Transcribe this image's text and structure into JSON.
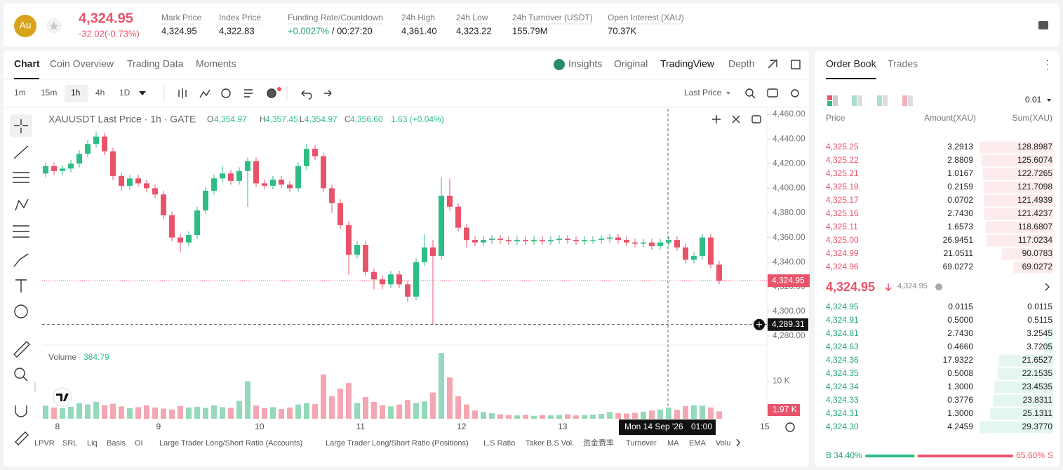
{
  "header": {
    "logo": "Au",
    "price": "4,324.95",
    "change": "-32.02(-0.73%)",
    "stats": [
      {
        "label": "Mark Price",
        "value": "4,324.95"
      },
      {
        "label": "Index Price",
        "value": "4,322.83"
      },
      {
        "label": "Funding Rate/Countdown",
        "value": "+0.0027%",
        "extra": "/ 00:27:20"
      },
      {
        "label": "24h High",
        "value": "4,361.40"
      },
      {
        "label": "24h Low",
        "value": "4,323.22"
      },
      {
        "label": "24h Turnover (USDT)",
        "value": "155.79M"
      },
      {
        "label": "Open Interest (XAU)",
        "value": "70.37K"
      }
    ]
  },
  "chart_tabs": [
    "Chart",
    "Coin Overview",
    "Trading Data",
    "Moments"
  ],
  "view_tabs": [
    "Insights",
    "Original",
    "TradingView",
    "Depth"
  ],
  "intervals": [
    "1m",
    "15m",
    "1h",
    "4h",
    "1D"
  ],
  "price_type": "Last Price",
  "indicators": [
    "LPVR",
    "SRL",
    "Liq",
    "Basis",
    "OI",
    "Large Trader Long/Short Ratio (Accounts)",
    "Large Trader Long/Short Ratio (Positions)",
    "L.S Ratio",
    "Taker B.S Vol.",
    "资金费率",
    "Turnover",
    "MA",
    "EMA",
    "Volu"
  ],
  "chart_data": {
    "type": "candlestick",
    "title": "XAUUSDT Last Price · 1h · GATE",
    "legend": [
      {
        "key": "O",
        "value": "4,354.97"
      },
      {
        "key": "H",
        "value": "4,357.45"
      },
      {
        "key": "L",
        "value": "4,354.97"
      },
      {
        "key": "C",
        "value": "4,356.60"
      }
    ],
    "legend_change": "1.63 (+0.04%)",
    "up_color": "#2ebd85",
    "down_color": "#e8536a",
    "open": [
      4412,
      4418,
      4414,
      4416,
      4420,
      4428,
      4436,
      4442,
      4430,
      4410,
      4402,
      4408,
      4404,
      4400,
      4395,
      4378,
      4360,
      4356,
      4362,
      4382,
      4398,
      4408,
      4412,
      4406,
      4414,
      4422,
      4404,
      4402,
      4407,
      4403,
      4400,
      4418,
      4432,
      4426,
      4400,
      4388,
      4370,
      4346,
      4354,
      4332,
      4326,
      4322,
      4330,
      4322,
      4312,
      4340,
      4352,
      4345,
      4394,
      4385,
      4368,
      4358,
      4356,
      4358,
      4359,
      4358,
      4357,
      4358,
      4357,
      4358,
      4357,
      4358,
      4359,
      4358,
      4357,
      4358,
      4358,
      4359,
      4360,
      4358,
      4356,
      4355,
      4356,
      4353,
      4356,
      4358,
      4352,
      4342,
      4345,
      4360,
      4338
    ],
    "high": [
      4421,
      4421,
      4419,
      4423,
      4431,
      4439,
      4446,
      4445,
      4433,
      4413,
      4411,
      4411,
      4407,
      4403,
      4398,
      4381,
      4363,
      4365,
      4385,
      4401,
      4411,
      4418,
      4415,
      4417,
      4425,
      4425,
      4407,
      4410,
      4410,
      4406,
      4421,
      4436,
      4435,
      4429,
      4403,
      4391,
      4373,
      4357,
      4357,
      4335,
      4329,
      4333,
      4333,
      4325,
      4343,
      4363,
      4358,
      4409,
      4408,
      4388,
      4371,
      4361,
      4361,
      4362,
      4362,
      4361,
      4361,
      4361,
      4361,
      4361,
      4361,
      4362,
      4362,
      4361,
      4361,
      4361,
      4362,
      4363,
      4363,
      4361,
      4359,
      4359,
      4359,
      4359,
      4361,
      4361,
      4355,
      4348,
      4363,
      4363,
      4341
    ],
    "low": [
      4409,
      4411,
      4411,
      4413,
      4417,
      4425,
      4433,
      4427,
      4407,
      4398,
      4399,
      4401,
      4397,
      4392,
      4375,
      4357,
      4348,
      4353,
      4359,
      4379,
      4395,
      4405,
      4403,
      4403,
      4385,
      4401,
      4399,
      4399,
      4400,
      4397,
      4397,
      4415,
      4423,
      4397,
      4380,
      4367,
      4330,
      4343,
      4329,
      4318,
      4318,
      4319,
      4319,
      4308,
      4309,
      4337,
      4289,
      4342,
      4382,
      4365,
      4352,
      4353,
      4353,
      4355,
      4355,
      4354,
      4354,
      4354,
      4354,
      4354,
      4354,
      4355,
      4355,
      4354,
      4354,
      4355,
      4355,
      4356,
      4355,
      4353,
      4352,
      4352,
      4350,
      4350,
      4353,
      4349,
      4339,
      4339,
      4342,
      4335,
      4322
    ],
    "close": [
      4418,
      4414,
      4416,
      4420,
      4428,
      4436,
      4442,
      4430,
      4410,
      4402,
      4408,
      4404,
      4400,
      4395,
      4378,
      4360,
      4356,
      4362,
      4382,
      4398,
      4408,
      4412,
      4406,
      4414,
      4422,
      4404,
      4402,
      4407,
      4403,
      4400,
      4418,
      4432,
      4426,
      4400,
      4388,
      4370,
      4346,
      4354,
      4332,
      4326,
      4322,
      4330,
      4322,
      4312,
      4340,
      4352,
      4345,
      4394,
      4385,
      4368,
      4358,
      4356,
      4358,
      4359,
      4358,
      4357,
      4358,
      4357,
      4358,
      4357,
      4358,
      4359,
      4358,
      4357,
      4358,
      4358,
      4359,
      4360,
      4358,
      4356,
      4355,
      4356,
      4353,
      4356,
      4358,
      4352,
      4342,
      4345,
      4360,
      4338,
      4324.95
    ],
    "ylim": [
      4272.6,
      4464.6
    ],
    "yticks": [
      {
        "value": 4280,
        "label": "4,280.00"
      },
      {
        "value": 4300,
        "label": "4,300.00"
      },
      {
        "value": 4320,
        "label": "4,320.00"
      },
      {
        "value": 4340,
        "label": "4,340.00"
      },
      {
        "value": 4360,
        "label": "4,360.00"
      },
      {
        "value": 4380,
        "label": "4,380.00"
      },
      {
        "value": 4400,
        "label": "4,400.00"
      },
      {
        "value": 4420,
        "label": "4,420.00"
      },
      {
        "value": 4440,
        "label": "4,440.00"
      },
      {
        "value": 4460,
        "label": "4,460.00"
      }
    ],
    "xticks": [
      {
        "value": 1.4,
        "label": "8"
      },
      {
        "value": 13.4,
        "label": "9"
      },
      {
        "value": 25.4,
        "label": "10"
      },
      {
        "value": 37.4,
        "label": "11"
      },
      {
        "value": 49.4,
        "label": "12"
      },
      {
        "value": 61.4,
        "label": "13"
      },
      {
        "value": 85.4,
        "label": "15"
      }
    ],
    "last_price": {
      "value": 4324.95,
      "label": "4,324.95"
    },
    "crosshair": {
      "value": 4289.31,
      "label": "4,289.31",
      "date": "Mon 14 Sep '26",
      "time": "01:00"
    },
    "volume_title": "Volume",
    "volume_value": "384.79",
    "volume": [
      3500,
      3000,
      2800,
      3200,
      4200,
      3800,
      4500,
      3600,
      4000,
      3300,
      2800,
      3100,
      3600,
      3000,
      2700,
      2500,
      3400,
      3000,
      3200,
      2900,
      3600,
      3100,
      2900,
      4800,
      10000,
      3500,
      2800,
      3100,
      2600,
      3000,
      3800,
      4200,
      3900,
      11800,
      6000,
      8000,
      9500,
      4200,
      5800,
      4500,
      3600,
      3300,
      3800,
      5000,
      4200,
      4600,
      7000,
      17500,
      11000,
      6000,
      3800,
      2200,
      1800,
      1500,
      1200,
      1000,
      900,
      1100,
      800,
      1000,
      900,
      1000,
      1200,
      900,
      1000,
      1100,
      1300,
      1800,
      1500,
      1400,
      1600,
      1900,
      2200,
      2500,
      3000,
      2400,
      3400,
      3600,
      3500,
      3000,
      1970
    ],
    "last_volume_label": "1.97 K",
    "volume_ylim": [
      0,
      18100
    ],
    "volume_yticks": [
      {
        "value": 10000,
        "label": "10 K"
      }
    ]
  },
  "order_book": {
    "tabs": [
      "Order Book",
      "Trades"
    ],
    "tick": "0.01",
    "columns": [
      "Price",
      "Amount(XAU)",
      "Sum(XAU)"
    ],
    "asks": [
      {
        "price": "4,325.25",
        "amount": "3.2913",
        "sum": "128.8987"
      },
      {
        "price": "4,325.22",
        "amount": "2.8809",
        "sum": "125.6074"
      },
      {
        "price": "4,325.21",
        "amount": "1.0167",
        "sum": "122.7265"
      },
      {
        "price": "4,325.18",
        "amount": "0.2159",
        "sum": "121.7098"
      },
      {
        "price": "4,325.17",
        "amount": "0.0702",
        "sum": "121.4939"
      },
      {
        "price": "4,325.16",
        "amount": "2.7430",
        "sum": "121.4237"
      },
      {
        "price": "4,325.11",
        "amount": "1.6573",
        "sum": "118.6807"
      },
      {
        "price": "4,325.00",
        "amount": "26.9451",
        "sum": "117.0234"
      },
      {
        "price": "4,324.99",
        "amount": "21.0511",
        "sum": "90.0783"
      },
      {
        "price": "4,324.96",
        "amount": "69.0272",
        "sum": "69.0272"
      }
    ],
    "mid_price": "4,324.95",
    "mark_price": "4,324.95",
    "bids": [
      {
        "price": "4,324.95",
        "amount": "0.0115",
        "sum": "0.0115"
      },
      {
        "price": "4,324.91",
        "amount": "0.5000",
        "sum": "0.5115"
      },
      {
        "price": "4,324.81",
        "amount": "2.7430",
        "sum": "3.2545"
      },
      {
        "price": "4,324.63",
        "amount": "0.4660",
        "sum": "3.7205"
      },
      {
        "price": "4,324.36",
        "amount": "17.9322",
        "sum": "21.6527"
      },
      {
        "price": "4,324.35",
        "amount": "0.5008",
        "sum": "22.1535"
      },
      {
        "price": "4,324.34",
        "amount": "1.3000",
        "sum": "23.4535"
      },
      {
        "price": "4,324.33",
        "amount": "0.3776",
        "sum": "23.8311"
      },
      {
        "price": "4,324.31",
        "amount": "1.3000",
        "sum": "25.1311"
      },
      {
        "price": "4,324.30",
        "amount": "4.2459",
        "sum": "29.3770"
      }
    ],
    "buy_key": "B",
    "sell_key": "S",
    "buy": {
      "value": 34.4,
      "label": "34.40%"
    },
    "sell": {
      "value": 65.6,
      "label": "65.60%"
    }
  }
}
